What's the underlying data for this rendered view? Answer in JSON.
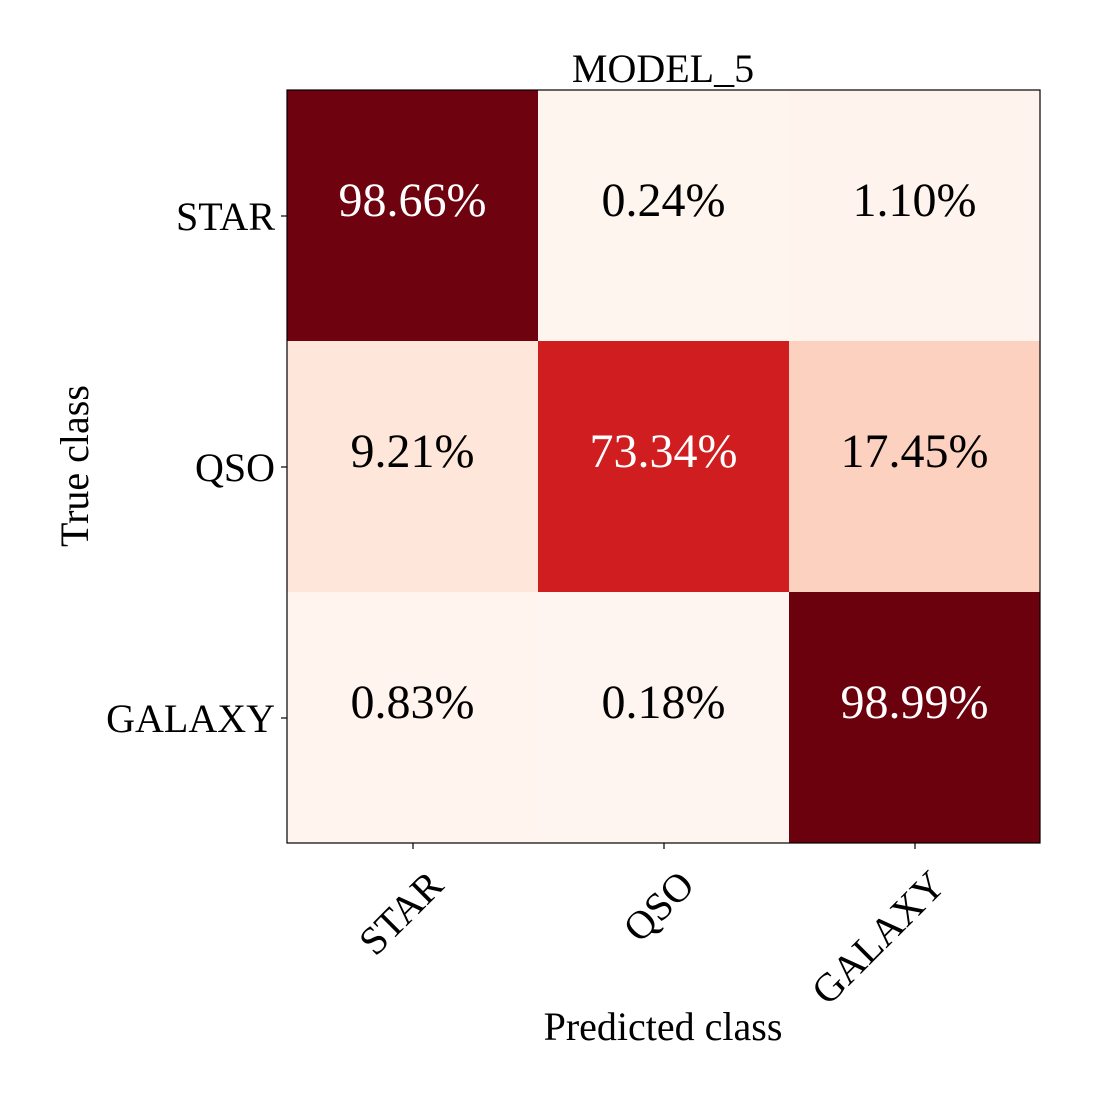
{
  "chart_data": {
    "type": "heatmap",
    "title": "MODEL_5",
    "xlabel": "Predicted class",
    "ylabel": "True class",
    "x_categories": [
      "STAR",
      "QSO",
      "GALAXY"
    ],
    "y_categories": [
      "STAR",
      "QSO",
      "GALAXY"
    ],
    "values": [
      [
        98.66,
        0.24,
        1.1
      ],
      [
        9.21,
        73.34,
        17.45
      ],
      [
        0.83,
        0.18,
        98.99
      ]
    ],
    "cell_labels": [
      [
        "98.66%",
        "0.24%",
        "1.10%"
      ],
      [
        "9.21%",
        "73.34%",
        "17.45%"
      ],
      [
        "0.83%",
        "0.18%",
        "98.99%"
      ]
    ],
    "colormap": "Reds",
    "value_range": [
      0,
      100
    ],
    "grid": false
  }
}
